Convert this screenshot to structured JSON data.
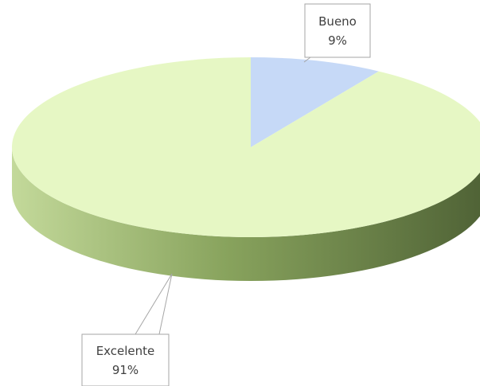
{
  "chart_data": {
    "type": "pie",
    "categories": [
      "Bueno",
      "Excelente"
    ],
    "values": [
      9,
      91
    ],
    "value_labels": [
      "9%",
      "91%"
    ],
    "colors": [
      "#c6d9f7",
      "#e6f7c4"
    ]
  }
}
